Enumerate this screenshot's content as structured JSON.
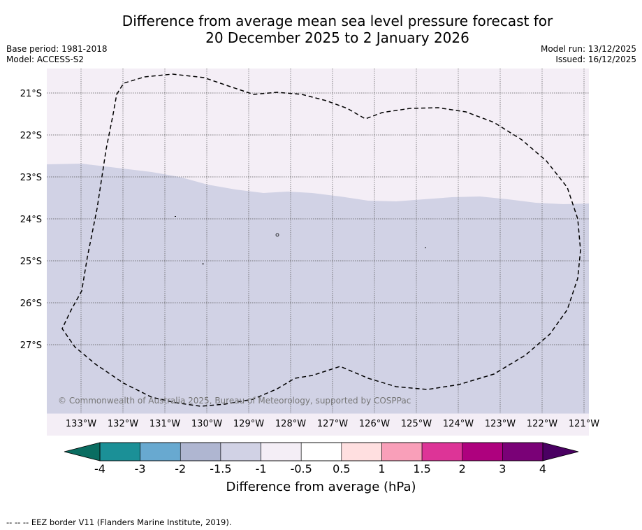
{
  "title": {
    "line1": "Difference from average mean sea level pressure forecast for",
    "line2": "20 December 2025 to 2 January 2026"
  },
  "meta": {
    "base_period": "Base period: 1981-2018",
    "model": "Model: ACCESS-S2",
    "model_run": "Model run: 13/12/2025",
    "issued": "Issued: 16/12/2025"
  },
  "map": {
    "lat_labels": [
      "21°S",
      "22°S",
      "23°S",
      "24°S",
      "25°S",
      "26°S",
      "27°S"
    ],
    "lon_labels": [
      "133°W",
      "132°W",
      "131°W",
      "130°W",
      "129°W",
      "128°W",
      "127°W",
      "126°W",
      "125°W",
      "124°W",
      "123°W",
      "122°W",
      "121°W"
    ],
    "copyright": "© Commonwealth of Australia 2025, Bureau of Meteorology, supported by COSPPac",
    "regions": [
      {
        "category": "-1 to -0.5",
        "color": "#f4eef6",
        "area": "north"
      },
      {
        "category": "-1.5 to -1",
        "color": "#d1d2e5",
        "area": "south"
      }
    ]
  },
  "colorbar": {
    "ticks": [
      "-4",
      "-3",
      "-2",
      "-1.5",
      "-1",
      "-0.5",
      "0.5",
      "1",
      "1.5",
      "2",
      "3",
      "4"
    ],
    "colors": [
      "#1b9097",
      "#68a9d0",
      "#afb6d1",
      "#d1d2e5",
      "#f4eef6",
      "#ffffff",
      "#ffdfe0",
      "#f99fb9",
      "#dd3497",
      "#ae017e",
      "#7a0177"
    ],
    "under_color": "#0a6d61",
    "over_color": "#4a0062",
    "label": "Difference from average (hPa)"
  },
  "footnote": "--  --  -- EEZ border V11 (Flanders Marine Institute, 2019)."
}
